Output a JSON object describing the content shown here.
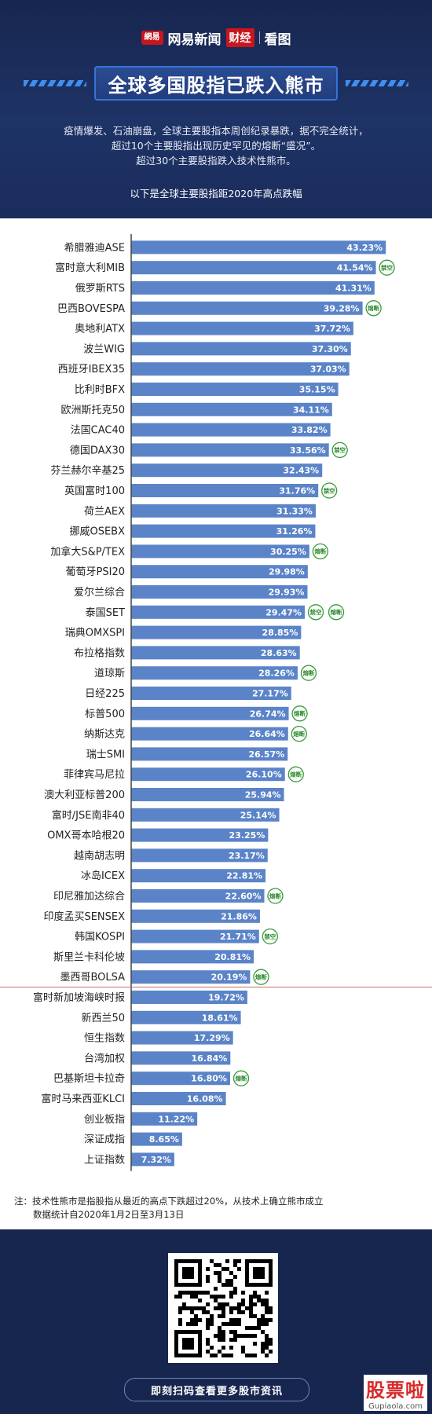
{
  "brand": {
    "logo_badge": "網易",
    "name": "网易新闻",
    "caijing": "财经",
    "kantu": "看图"
  },
  "title": "全球多国股指已跌入熊市",
  "intro_lines": [
    "疫情爆发、石油崩盘，全球主要股指本周创纪录暴跌，据不完全统计，",
    "超过10个主要股指出现历史罕见的熔断“盛况”。",
    "超过30个主要股指跌入技术性熊市。"
  ],
  "subtitle": "以下是全球主要股指距2020年高点跌幅",
  "chart_data": {
    "type": "bar",
    "orientation": "horizontal",
    "unit": "%",
    "categories": [
      "希腊雅迪ASE",
      "富时意大利MIB",
      "俄罗斯RTS",
      "巴西BOVESPA",
      "奥地利ATX",
      "波兰WIG",
      "西班牙IBEX35",
      "比利时BFX",
      "欧洲斯托克50",
      "法国CAC40",
      "德国DAX30",
      "芬兰赫尔辛基25",
      "英国富时100",
      "荷兰AEX",
      "挪威OSEBX",
      "加拿大S&P/TEX",
      "葡萄牙PSI20",
      "爱尔兰综合",
      "泰国SET",
      "瑞典OMXSPI",
      "布拉格指数",
      "道琼斯",
      "日经225",
      "标普500",
      "纳斯达克",
      "瑞士SMI",
      "菲律宾马尼拉",
      "澳大利亚标普200",
      "富时/JSE南非40",
      "OMX哥本哈根20",
      "越南胡志明",
      "冰岛ICEX",
      "印尼雅加达综合",
      "印度孟买SENSEX",
      "韩国KOSPI",
      "斯里兰卡科伦坡",
      "墨西哥BOLSA",
      "富时新加坡海峡时报",
      "新西兰50",
      "恒生指数",
      "台湾加权",
      "巴基斯坦卡拉奇",
      "富时马来西亚KLCI",
      "创业板指",
      "深证成指",
      "上证指数"
    ],
    "values": [
      43.23,
      41.54,
      41.31,
      39.28,
      37.72,
      37.3,
      37.03,
      35.15,
      34.11,
      33.82,
      33.56,
      32.43,
      31.76,
      31.33,
      31.26,
      30.25,
      29.98,
      29.93,
      29.47,
      28.85,
      28.63,
      28.26,
      27.17,
      26.74,
      26.64,
      26.57,
      26.1,
      25.94,
      25.14,
      23.25,
      23.17,
      22.81,
      22.6,
      21.86,
      21.71,
      20.81,
      20.19,
      19.72,
      18.61,
      17.29,
      16.84,
      16.8,
      16.08,
      11.22,
      8.65,
      7.32
    ],
    "value_labels": [
      "43.23%",
      "41.54%",
      "41.31%",
      "39.28%",
      "37.72%",
      "37.30%",
      "37.03%",
      "35.15%",
      "34.11%",
      "33.82%",
      "33.56%",
      "32.43%",
      "31.76%",
      "31.33%",
      "31.26%",
      "30.25%",
      "29.98%",
      "29.93%",
      "29.47%",
      "28.85%",
      "28.63%",
      "28.26%",
      "27.17%",
      "26.74%",
      "26.64%",
      "26.57%",
      "26.10%",
      "25.94%",
      "25.14%",
      "23.25%",
      "23.17%",
      "22.81%",
      "22.60%",
      "21.86%",
      "21.71%",
      "20.81%",
      "20.19%",
      "19.72%",
      "18.61%",
      "17.29%",
      "16.84%",
      "16.80%",
      "16.08%",
      "11.22%",
      "8.65%",
      "7.32%"
    ],
    "badges": [
      [],
      [
        "禁空"
      ],
      [],
      [
        "熔断"
      ],
      [],
      [],
      [],
      [],
      [],
      [],
      [
        "禁空"
      ],
      [],
      [
        "禁空"
      ],
      [],
      [],
      [
        "熔断"
      ],
      [],
      [],
      [
        "禁空",
        "熔断"
      ],
      [],
      [],
      [
        "熔断"
      ],
      [],
      [
        "熔断"
      ],
      [
        "熔断"
      ],
      [],
      [
        "熔断"
      ],
      [],
      [],
      [],
      [],
      [],
      [
        "熔断"
      ],
      [],
      [
        "禁空"
      ],
      [],
      [
        "熔断"
      ],
      [],
      [],
      [],
      [],
      [
        "熔断"
      ],
      [],
      [],
      [],
      []
    ],
    "bear_threshold": 20,
    "bar_color": "#5b84c8",
    "badge_color": "#3a9a3a"
  },
  "note_lines": [
    "注：技术性熊市是指股指从最近的高点下跌超过20%，从技术上确立熊市成立",
    "数据统计自2020年1月2日至3月13日"
  ],
  "footer": {
    "scan_text": "即刻扫码查看更多股市资讯"
  },
  "watermark": {
    "main": "股票啦",
    "sub": "Gupiaola.com"
  }
}
